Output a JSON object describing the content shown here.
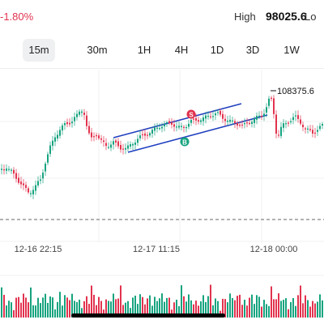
{
  "header": {
    "change_pct": "-1.80%",
    "high_label": "High",
    "high_value": "98025.6",
    "low_label": "Lo"
  },
  "tabs": [
    {
      "label": "15m",
      "active": true
    },
    {
      "label": "30m",
      "active": false
    },
    {
      "label": "1H",
      "active": false
    },
    {
      "label": "4H",
      "active": false
    },
    {
      "label": "1D",
      "active": false
    },
    {
      "label": "3D",
      "active": false
    },
    {
      "label": "1W",
      "active": false
    }
  ],
  "chart": {
    "peak_label": "108375.6",
    "x_ticks": [
      "12-16 22:15",
      "12-17 11:15",
      "12-18 00:00"
    ],
    "markers": [
      {
        "letter": "S",
        "color": "#e2334f"
      },
      {
        "letter": "B",
        "color": "#16a37f"
      }
    ],
    "colors": {
      "up": "#16a37f",
      "down": "#e2334f",
      "channel": "#1f3fbf",
      "grid": "#f0f0f0",
      "dashed": "#666666"
    }
  },
  "chart_data": {
    "type": "candlestick",
    "x_ticks": [
      "12-16 22:15",
      "12-17 11:15",
      "12-18 00:00"
    ],
    "annotations": [
      "108375.6"
    ],
    "markers": [
      "S",
      "B"
    ],
    "grid": true
  }
}
